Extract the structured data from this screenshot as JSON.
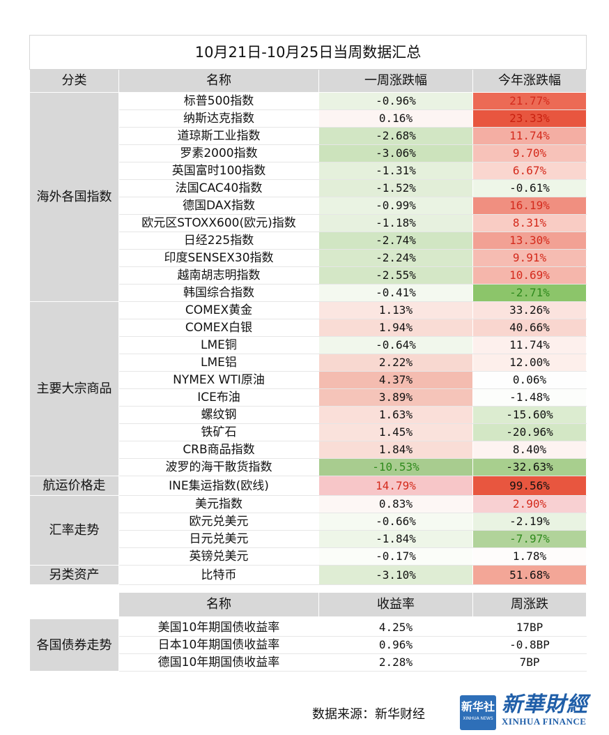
{
  "title": "10月21日-10月25日当周数据汇总",
  "header": {
    "category": "分类",
    "name": "名称",
    "week": "一周涨跌幅",
    "ytd": "今年涨跌幅"
  },
  "colors": {
    "header_bg": "#d8d8d8",
    "strong_red": "#e8563f",
    "strong_green": "#8cc56a"
  },
  "groups": [
    {
      "category": "海外各国指数",
      "rows": [
        {
          "name": "标普500指数",
          "week": "-0.96%",
          "ytd": "21.77%",
          "week_bg": "#eaf3e3",
          "ytd_bg": "#ec6a55",
          "ytd_color": "#d42a1c"
        },
        {
          "name": "纳斯达克指数",
          "week": "0.16%",
          "ytd": "23.33%",
          "week_bg": "#fdf5f3",
          "ytd_bg": "#e8563f",
          "ytd_color": "#c9200f"
        },
        {
          "name": "道琼斯工业指数",
          "week": "-2.68%",
          "ytd": "11.74%",
          "week_bg": "#d2e6c4",
          "ytd_bg": "#f4aea3",
          "ytd_color": "#d42a1c"
        },
        {
          "name": "罗素2000指数",
          "week": "-3.06%",
          "ytd": "9.70%",
          "week_bg": "#cce3bc",
          "ytd_bg": "#f7c2b9",
          "ytd_color": "#d42a1c"
        },
        {
          "name": "英国富时100指数",
          "week": "-1.31%",
          "ytd": "6.67%",
          "week_bg": "#e5f0dc",
          "ytd_bg": "#fad6cf",
          "ytd_color": "#d42a1c"
        },
        {
          "name": "法国CAC40指数",
          "week": "-1.52%",
          "ytd": "-0.61%",
          "week_bg": "#e2eed8",
          "ytd_bg": "#eef6e8",
          "ytd_color": "#111111"
        },
        {
          "name": "德国DAX指数",
          "week": "-0.99%",
          "ytd": "16.19%",
          "week_bg": "#eaf3e3",
          "ytd_bg": "#f08f80",
          "ytd_color": "#d42a1c"
        },
        {
          "name": "欧元区STOXX600(欧元)指数",
          "week": "-1.18%",
          "ytd": "8.31%",
          "week_bg": "#e7f1df",
          "ytd_bg": "#f9ccc4",
          "ytd_color": "#d42a1c"
        },
        {
          "name": "日经225指数",
          "week": "-2.74%",
          "ytd": "13.30%",
          "week_bg": "#d1e6c3",
          "ytd_bg": "#f2a194",
          "ytd_color": "#d42a1c"
        },
        {
          "name": "印度SENSEX30指数",
          "week": "-2.24%",
          "ytd": "9.91%",
          "week_bg": "#d8e9cb",
          "ytd_bg": "#f6bcb2",
          "ytd_color": "#d42a1c"
        },
        {
          "name": "越南胡志明指数",
          "week": "-2.55%",
          "ytd": "10.69%",
          "week_bg": "#d4e7c6",
          "ytd_bg": "#f5b6ab",
          "ytd_color": "#d42a1c"
        },
        {
          "name": "韩国综合指数",
          "week": "-0.41%",
          "ytd": "-2.71%",
          "week_bg": "#f4f9f0",
          "ytd_bg": "#8cc56a",
          "ytd_color": "#2f8a1c"
        }
      ]
    },
    {
      "category": "主要大宗商品",
      "rows": [
        {
          "name": "COMEX黄金",
          "week": "1.13%",
          "ytd": "33.26%",
          "week_bg": "#fbe6e1",
          "ytd_bg": "#fbe3de",
          "ytd_color": "#111111"
        },
        {
          "name": "COMEX白银",
          "week": "1.94%",
          "ytd": "40.66%",
          "week_bg": "#f9dcd5",
          "ytd_bg": "#f9d6cf",
          "ytd_color": "#111111"
        },
        {
          "name": "LME铜",
          "week": "-0.64%",
          "ytd": "11.74%",
          "week_bg": "#f1f7ec",
          "ytd_bg": "#fdf0ed",
          "ytd_color": "#111111"
        },
        {
          "name": "LME铝",
          "week": "2.22%",
          "ytd": "12.00%",
          "week_bg": "#f8d8d0",
          "ytd_bg": "#fdefeb",
          "ytd_color": "#111111"
        },
        {
          "name": "NYMEX WTI原油",
          "week": "4.37%",
          "ytd": "0.06%",
          "week_bg": "#f4bcb0",
          "ytd_bg": "#fefefe",
          "ytd_color": "#111111"
        },
        {
          "name": "ICE布油",
          "week": "3.89%",
          "ytd": "-1.48%",
          "week_bg": "#f5c4b9",
          "ytd_bg": "#fcfdfb",
          "ytd_color": "#111111"
        },
        {
          "name": "螺纹钢",
          "week": "1.63%",
          "ytd": "-15.60%",
          "week_bg": "#fadfd9",
          "ytd_bg": "#dcecd0",
          "ytd_color": "#111111"
        },
        {
          "name": "铁矿石",
          "week": "1.45%",
          "ytd": "-20.96%",
          "week_bg": "#fae2dc",
          "ytd_bg": "#d3e7c5",
          "ytd_color": "#111111"
        },
        {
          "name": "CRB商品指数",
          "week": "1.84%",
          "ytd": "8.40%",
          "week_bg": "#f9ddd6",
          "ytd_bg": "#fdf3f1",
          "ytd_color": "#111111"
        },
        {
          "name": "波罗的海干散货指数",
          "week": "-10.53%",
          "ytd": "-32.63%",
          "week_bg": "#a8cc8f",
          "ytd_bg": "#a8cf8e",
          "week_color": "#2f8a1c",
          "ytd_color": "#111111"
        }
      ]
    },
    {
      "category": "航运价格走",
      "rows": [
        {
          "name": "INE集运指数(欧线)",
          "week": "14.79%",
          "ytd": "99.56%",
          "week_bg": "#f7c6c8",
          "ytd_bg": "#e8563f",
          "week_color": "#d42a1c",
          "ytd_color": "#111111"
        }
      ]
    },
    {
      "category": "汇率走势",
      "rows": [
        {
          "name": "美元指数",
          "week": "0.83%",
          "ytd": "2.90%",
          "week_bg": "#fdf7f5",
          "ytd_bg": "#f8d0d2",
          "ytd_color": "#d42a1c"
        },
        {
          "name": "欧元兑美元",
          "week": "-0.66%",
          "ytd": "-2.19%",
          "week_bg": "#f6faf2",
          "ytd_bg": "#e9f3e2",
          "ytd_color": "#111111"
        },
        {
          "name": "日元兑美元",
          "week": "-1.84%",
          "ytd": "-7.97%",
          "week_bg": "#eef6e8",
          "ytd_bg": "#b1d39a",
          "ytd_color": "#2f8a1c"
        },
        {
          "name": "英镑兑美元",
          "week": "-0.17%",
          "ytd": "1.78%",
          "week_bg": "#fbfdf9",
          "ytd_bg": "#fefcfb",
          "ytd_color": "#111111"
        }
      ]
    },
    {
      "category": "另类资产",
      "rows": [
        {
          "name": "比特币",
          "week": "-3.10%",
          "ytd": "51.68%",
          "week_bg": "#dfedd4",
          "ytd_bg": "#f3a697",
          "ytd_color": "#111111"
        }
      ]
    }
  ],
  "bonds": {
    "header": {
      "name": "名称",
      "yield": "收益率",
      "change": "周涨跌"
    },
    "category": "各国债券走势",
    "rows": [
      {
        "name": "美国10年期国债收益率",
        "yield": "4.25%",
        "change": "17BP"
      },
      {
        "name": "日本10年期国债收益率",
        "yield": "0.96%",
        "change": "-0.8BP"
      },
      {
        "name": "德国10年期国债收益率",
        "yield": "2.28%",
        "change": "7BP"
      }
    ]
  },
  "footer": {
    "source": "数据来源：新华财经",
    "logo_square_cn": "新华社",
    "logo_square_en": "XINHUA NEWS",
    "logo_cn": "新華財經",
    "logo_en": "XINHUA FINANCE"
  }
}
